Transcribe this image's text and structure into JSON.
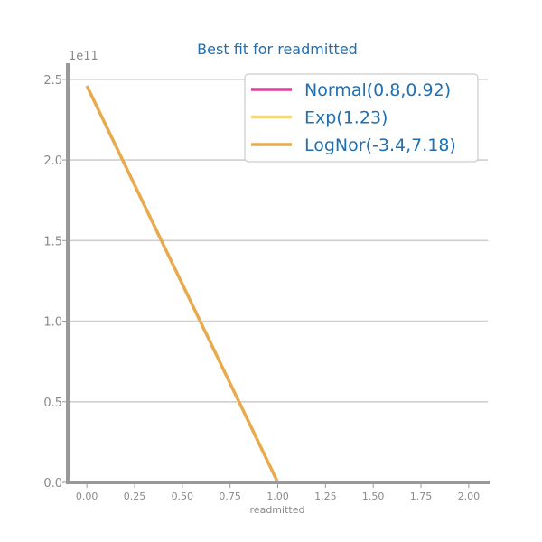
{
  "chart_data": {
    "type": "line",
    "title": "Best fit for readmitted",
    "xlabel": "readmitted",
    "ylabel": "",
    "y_offset_text": "1e11",
    "xlim": [
      -0.1,
      2.1
    ],
    "ylim": [
      0,
      2.6
    ],
    "x_ticks": [
      0.0,
      0.25,
      0.5,
      0.75,
      1.0,
      1.25,
      1.5,
      1.75,
      2.0
    ],
    "x_tick_labels": [
      "0.00",
      "0.25",
      "0.50",
      "0.75",
      "1.00",
      "1.25",
      "1.50",
      "1.75",
      "2.00"
    ],
    "y_ticks": [
      0.0,
      0.5,
      1.0,
      1.5,
      2.0,
      2.5
    ],
    "y_tick_labels": [
      "0.0",
      "0.5",
      "1.0",
      "1.5",
      "2.0",
      "2.5"
    ],
    "grid": "horizontal",
    "legend_position": "top-right",
    "series": [
      {
        "name": "Normal(0.8,0.92)",
        "color": "#d9449a",
        "x": [
          0.0,
          1.0
        ],
        "y": [
          0.0,
          0.0
        ]
      },
      {
        "name": "Exp(1.23)",
        "color": "#f0d878",
        "x": [
          0.0,
          1.0
        ],
        "y": [
          0.0,
          0.0
        ]
      },
      {
        "name": "LogNor(-3.4,7.18)",
        "color": "#e8aa4c",
        "x": [
          0.0,
          1.0
        ],
        "y": [
          2.46,
          0.0
        ]
      }
    ]
  }
}
